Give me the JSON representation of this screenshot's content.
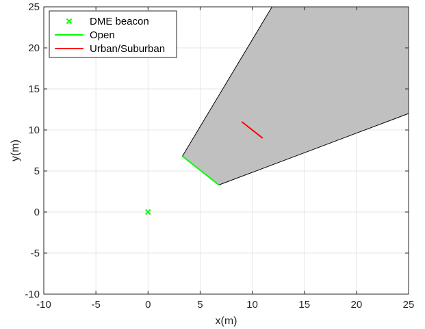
{
  "chart_data": {
    "type": "scatter",
    "xlabel": "x(m)",
    "ylabel": "y(m)",
    "xlim": [
      -10,
      25
    ],
    "ylim": [
      -10,
      25
    ],
    "xticks": [
      -10,
      -5,
      0,
      5,
      10,
      15,
      20,
      25
    ],
    "yticks": [
      -10,
      -5,
      0,
      5,
      10,
      15,
      20,
      25
    ],
    "grid": true,
    "legend_position": "top-left",
    "series": [
      {
        "name": "DME beacon",
        "kind": "marker",
        "marker": "x",
        "color": "#00ff00",
        "points": [
          [
            0,
            0
          ]
        ]
      },
      {
        "name": "Open",
        "kind": "line",
        "color": "#00ff00",
        "points": [
          [
            3.3,
            6.8
          ],
          [
            6.8,
            3.3
          ]
        ]
      },
      {
        "name": "Urban/Suburban",
        "kind": "line",
        "color": "#ff0000",
        "points": [
          [
            9,
            11
          ],
          [
            11,
            9
          ]
        ]
      }
    ],
    "shaded_region": {
      "fill": "#c0c0c0",
      "stroke": "#000000",
      "points": [
        [
          3.3,
          6.8
        ],
        [
          6.8,
          3.3
        ],
        [
          25,
          12
        ],
        [
          25,
          25
        ],
        [
          11.9,
          25
        ]
      ]
    }
  }
}
